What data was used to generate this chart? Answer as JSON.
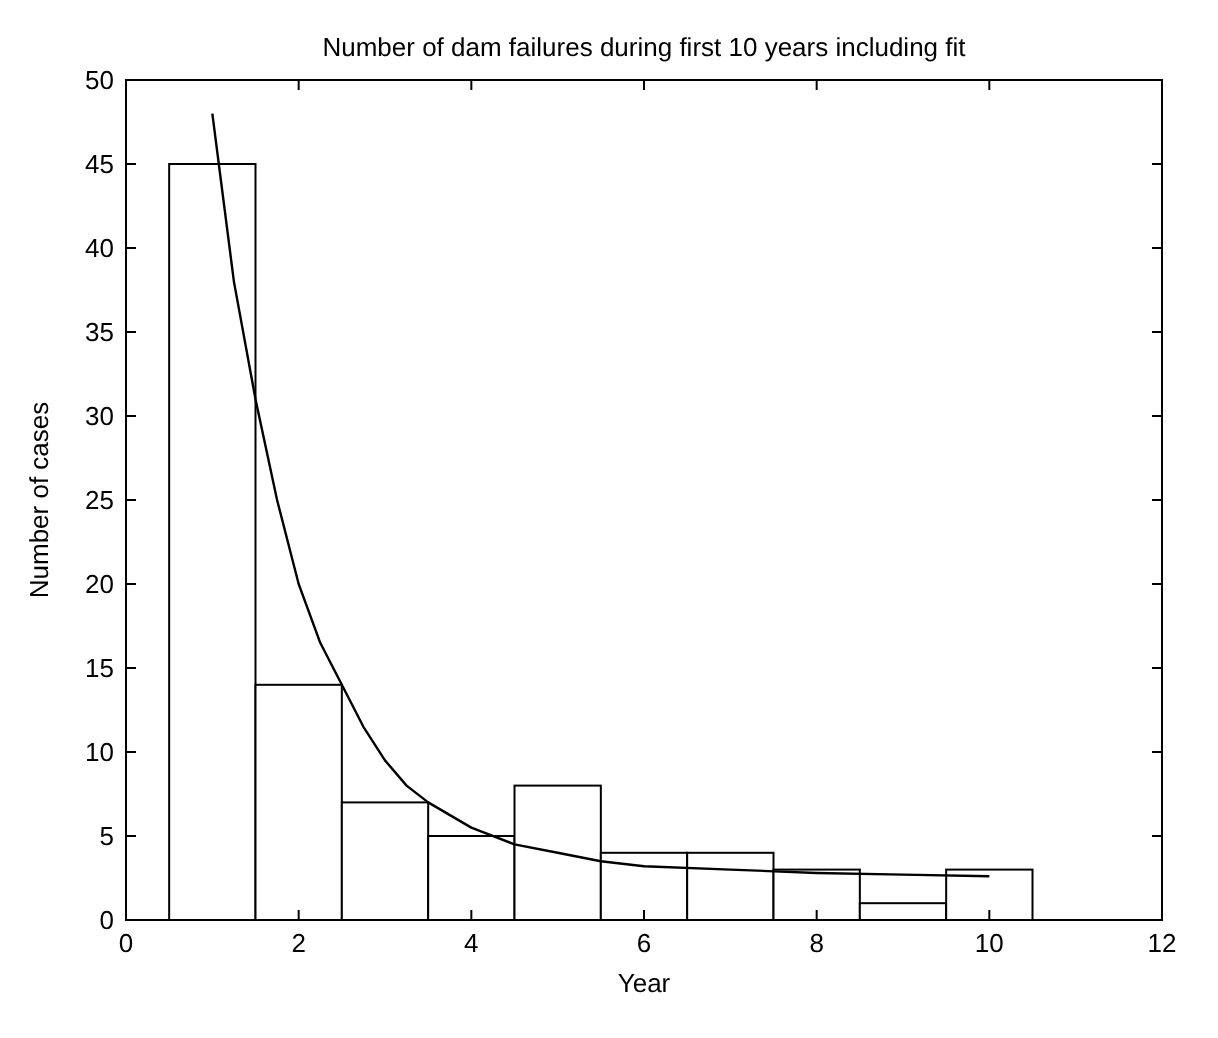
{
  "chart_data": {
    "type": "histogram",
    "title": "Number of dam failures during first 10 years including fit",
    "xlabel": "Year",
    "ylabel": "Number of cases",
    "xlim": [
      0,
      12
    ],
    "xticks": [
      0,
      2,
      4,
      6,
      8,
      10,
      12
    ],
    "ylim": [
      0,
      50
    ],
    "yticks": [
      0,
      5,
      10,
      15,
      20,
      25,
      30,
      35,
      40,
      45,
      50
    ],
    "grid": false,
    "series": [
      {
        "color": "#000000",
        "bins": [
          0.5,
          1.5,
          2.5,
          3.5,
          4.5,
          5.5,
          6.5,
          7.5,
          8.5,
          9.5,
          10.5
        ],
        "values": [
          45,
          14,
          7,
          5,
          8,
          4,
          4,
          3,
          1,
          3
        ]
      },
      {
        "type": "line",
        "color": "#000000",
        "x": [
          1,
          1.25,
          1.5,
          1.75,
          2,
          2.25,
          2.5,
          2.75,
          3,
          3.25,
          3.5,
          4,
          4.5,
          5,
          5.5,
          6,
          7,
          8,
          9,
          10
        ],
        "values": [
          48,
          38,
          31,
          25,
          20,
          16.5,
          14,
          11.5,
          9.5,
          8,
          7,
          5.5,
          4.5,
          4,
          3.5,
          3.2,
          3,
          2.8,
          2.7,
          2.6
        ]
      }
    ]
  }
}
